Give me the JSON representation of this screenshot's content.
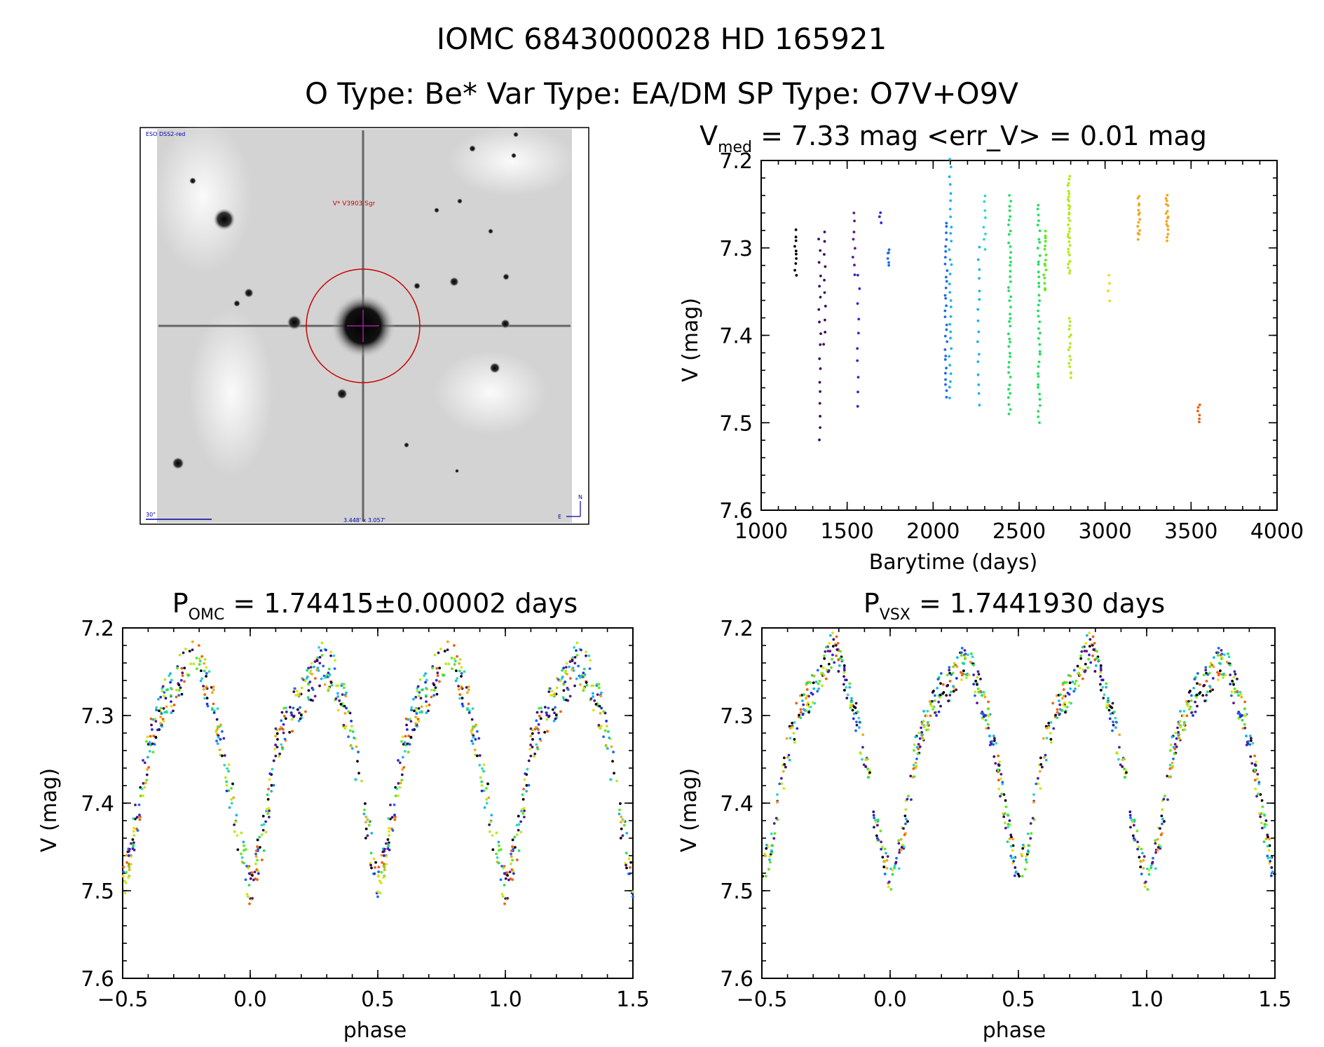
{
  "header": {
    "line1": "IOMC 6843000028   HD 165921",
    "line2": "O Type: Be*  Var Type: EA/DM  SP Type: O7V+O9V"
  },
  "image": {
    "corner_label": "ESO DSS2-red",
    "target_label": "V* V3903 Sgr",
    "scale_label": "30\"",
    "size_label": "3.448' x 3.057'",
    "north": "N",
    "east": "E"
  },
  "chart_data": [
    {
      "type": "scatter",
      "title_main": "V",
      "title_sub": "med",
      "title_rest": " = 7.33 mag <err_V> = 0.01 mag",
      "xlabel": "Barytime (days)",
      "ylabel": "V (mag)",
      "xlim": [
        1000,
        4000
      ],
      "ylim": [
        7.6,
        7.2
      ],
      "xticks": [
        "1000",
        "1500",
        "2000",
        "2500",
        "3000",
        "3500",
        "4000"
      ],
      "yticks": [
        "7.2",
        "7.3",
        "7.4",
        "7.5",
        "7.6"
      ],
      "colormap": [
        "#000000",
        "#3a0a5e",
        "#5a1a8c",
        "#2a2ad8",
        "#1a6af0",
        "#18b4f0",
        "#2ad8c8",
        "#20e060",
        "#5aea1a",
        "#b4ea1a",
        "#e6e010",
        "#f0a818",
        "#ee6010"
      ],
      "groups": [
        {
          "t": 1200,
          "ymin": 7.28,
          "ymax": 7.33,
          "n": 10,
          "c": 0
        },
        {
          "t": 1340,
          "ymin": 7.29,
          "ymax": 7.52,
          "n": 18,
          "c": 1
        },
        {
          "t": 1370,
          "ymin": 7.28,
          "ymax": 7.41,
          "n": 10,
          "c": 1
        },
        {
          "t": 1540,
          "ymin": 7.26,
          "ymax": 7.33,
          "n": 8,
          "c": 2
        },
        {
          "t": 1565,
          "ymin": 7.33,
          "ymax": 7.48,
          "n": 10,
          "c": 3
        },
        {
          "t": 1695,
          "ymin": 7.26,
          "ymax": 7.27,
          "n": 3,
          "c": 3
        },
        {
          "t": 1740,
          "ymin": 7.3,
          "ymax": 7.32,
          "n": 6,
          "c": 4
        },
        {
          "t": 2075,
          "ymin": 7.27,
          "ymax": 7.47,
          "n": 30,
          "c": 4
        },
        {
          "t": 2100,
          "ymin": 7.2,
          "ymax": 7.47,
          "n": 30,
          "c": 5
        },
        {
          "t": 2265,
          "ymin": 7.3,
          "ymax": 7.48,
          "n": 16,
          "c": 5
        },
        {
          "t": 2300,
          "ymin": 7.24,
          "ymax": 7.3,
          "n": 8,
          "c": 6
        },
        {
          "t": 2445,
          "ymin": 7.24,
          "ymax": 7.49,
          "n": 44,
          "c": 7
        },
        {
          "t": 2615,
          "ymin": 7.25,
          "ymax": 7.5,
          "n": 40,
          "c": 7
        },
        {
          "t": 2650,
          "ymin": 7.28,
          "ymax": 7.35,
          "n": 16,
          "c": 8
        },
        {
          "t": 2790,
          "ymin": 7.22,
          "ymax": 7.33,
          "n": 34,
          "c": 9
        },
        {
          "t": 2795,
          "ymin": 7.38,
          "ymax": 7.45,
          "n": 16,
          "c": 9
        },
        {
          "t": 3020,
          "ymin": 7.33,
          "ymax": 7.36,
          "n": 4,
          "c": 10
        },
        {
          "t": 3195,
          "ymin": 7.24,
          "ymax": 7.29,
          "n": 14,
          "c": 11
        },
        {
          "t": 3360,
          "ymin": 7.24,
          "ymax": 7.29,
          "n": 16,
          "c": 11
        },
        {
          "t": 3545,
          "ymin": 7.48,
          "ymax": 7.5,
          "n": 6,
          "c": 12
        }
      ]
    },
    {
      "type": "scatter",
      "title_main": "P",
      "title_sub": "OMC",
      "title_rest": " = 1.74415±0.00002 days",
      "xlabel": "phase",
      "ylabel": "V (mag)",
      "xlim": [
        -0.5,
        1.5
      ],
      "ylim": [
        7.6,
        7.2
      ],
      "xticks": [
        "−0.5",
        "0.0",
        "0.5",
        "1.0",
        "1.5"
      ],
      "yticks": [
        "7.2",
        "7.3",
        "7.4",
        "7.5",
        "7.6"
      ],
      "curve": {
        "phase": [
          0.0,
          0.05,
          0.1,
          0.15,
          0.2,
          0.25,
          0.28,
          0.32,
          0.38,
          0.42,
          0.46,
          0.5,
          0.54,
          0.6,
          0.65,
          0.7,
          0.75,
          0.78,
          0.85,
          0.9,
          0.95,
          1.0
        ],
        "mag": [
          7.5,
          7.44,
          7.34,
          7.3,
          7.28,
          7.26,
          7.24,
          7.25,
          7.3,
          7.36,
          7.43,
          7.49,
          7.44,
          7.34,
          7.29,
          7.27,
          7.24,
          7.22,
          7.28,
          7.35,
          7.43,
          7.5
        ]
      },
      "n_points": 500,
      "scatter": 0.025
    },
    {
      "type": "scatter",
      "title_main": "P",
      "title_sub": "VSX",
      "title_rest": " = 1.7441930 days",
      "xlabel": "phase",
      "ylabel": "V (mag)",
      "xlim": [
        -0.5,
        1.5
      ],
      "ylim": [
        7.6,
        7.2
      ],
      "xticks": [
        "−0.5",
        "0.0",
        "0.5",
        "1.0",
        "1.5"
      ],
      "yticks": [
        "7.2",
        "7.3",
        "7.4",
        "7.5",
        "7.6"
      ],
      "curve": {
        "phase": [
          0.0,
          0.05,
          0.1,
          0.15,
          0.2,
          0.25,
          0.28,
          0.32,
          0.38,
          0.42,
          0.46,
          0.5,
          0.54,
          0.6,
          0.65,
          0.7,
          0.75,
          0.78,
          0.85,
          0.9,
          0.95,
          1.0
        ],
        "mag": [
          7.49,
          7.44,
          7.34,
          7.3,
          7.27,
          7.26,
          7.24,
          7.25,
          7.3,
          7.36,
          7.43,
          7.49,
          7.44,
          7.34,
          7.29,
          7.27,
          7.24,
          7.22,
          7.28,
          7.35,
          7.43,
          7.49
        ]
      },
      "n_points": 500,
      "scatter": 0.02
    }
  ]
}
